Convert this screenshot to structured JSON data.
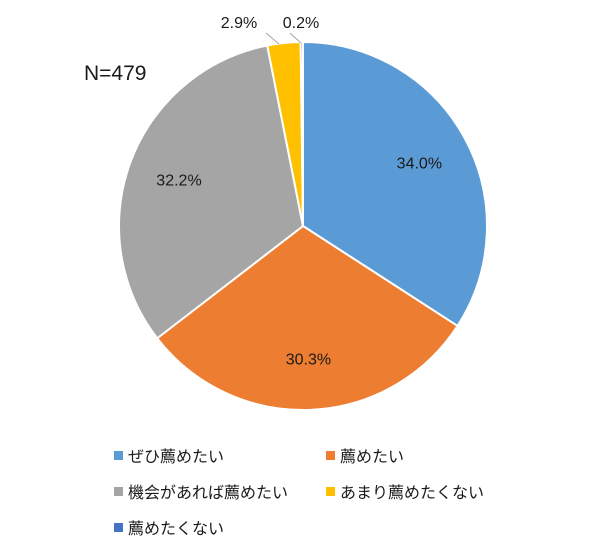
{
  "chart_data": {
    "type": "pie",
    "sample_label": "N=479",
    "categories": [
      "ぜひ薦めたい",
      "薦めたい",
      "機会があれば薦めたい",
      "あまり薦めたくない",
      "薦めたくない"
    ],
    "values": [
      34.0,
      30.3,
      32.2,
      2.9,
      0.2
    ],
    "value_labels": [
      "34.0%",
      "30.3%",
      "32.2%",
      "2.9%",
      "0.2%"
    ],
    "colors": [
      "#5b9bd5",
      "#ed7d31",
      "#a5a5a5",
      "#ffc000",
      "#4472c4"
    ],
    "legend_position": "bottom",
    "start_angle": "top, clockwise"
  }
}
